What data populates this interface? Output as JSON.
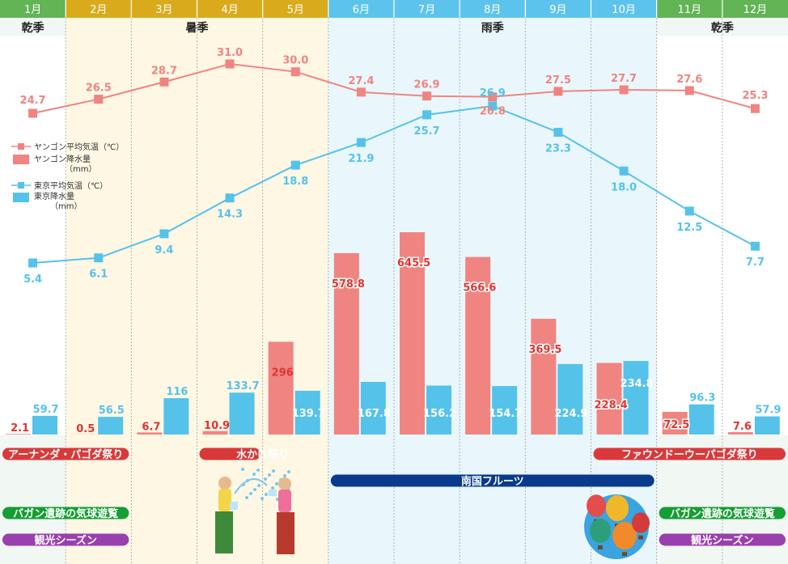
{
  "colors": {
    "dry": "#62b455",
    "hot": "#d9ab1c",
    "rainy": "#5cc4ec",
    "dry_bg": "#f1f7f2",
    "hot_bg": "#fdf7e4",
    "rainy_bg": "#e9f7fc",
    "yangon": "#f08481",
    "tokyo": "#55c2ea",
    "red_label": "#e2332f",
    "event_red": "#d9393a",
    "event_green": "#149e33",
    "event_purple": "#9a3fae",
    "event_navy": "#0a3a8c"
  },
  "seasons": [
    {
      "label": "乾季",
      "type": "dry",
      "start": 0,
      "end": 1
    },
    {
      "label": "暑季",
      "type": "hot",
      "start": 1,
      "end": 5
    },
    {
      "label": "雨季",
      "type": "rainy",
      "start": 5,
      "end": 10
    },
    {
      "label": "乾季",
      "type": "dry",
      "start": 10,
      "end": 12
    }
  ],
  "legend": {
    "yangon_temp": "ヤンゴン平均気温（℃）",
    "yangon_rain": "ヤンゴン降水量",
    "yangon_rain_unit": "（mm）",
    "tokyo_temp": "東京平均気温（℃）",
    "tokyo_rain": "東京降水量",
    "tokyo_rain_unit": "（mm）"
  },
  "chart_data": {
    "type": "bar",
    "categories": [
      "1月",
      "2月",
      "3月",
      "4月",
      "5月",
      "6月",
      "7月",
      "8月",
      "9月",
      "10月",
      "11月",
      "12月"
    ],
    "series": [
      {
        "name": "ヤンゴン平均気温（℃）",
        "kind": "line",
        "values": [
          24.7,
          26.5,
          28.7,
          31.0,
          30.0,
          27.4,
          26.9,
          26.8,
          27.5,
          27.7,
          27.6,
          25.3
        ]
      },
      {
        "name": "東京平均気温（℃）",
        "kind": "line",
        "values": [
          5.4,
          6.1,
          9.4,
          14.3,
          18.8,
          21.9,
          25.7,
          26.9,
          23.3,
          18.0,
          12.5,
          7.7
        ]
      },
      {
        "name": "ヤンゴン降水量（mm）",
        "kind": "bar",
        "values": [
          2.1,
          0.5,
          6.7,
          10.9,
          296,
          578.8,
          645.5,
          566.6,
          369.5,
          228.4,
          72.5,
          7.6
        ]
      },
      {
        "name": "東京降水量（mm）",
        "kind": "bar",
        "values": [
          59.7,
          56.5,
          116,
          133.7,
          139.7,
          167.8,
          156.2,
          154.7,
          224.9,
          234.8,
          96.3,
          57.9
        ]
      }
    ],
    "temp_range": [
      0,
      31
    ],
    "rain_range": [
      0,
      650
    ],
    "grid": "dashed month separators"
  },
  "events": [
    {
      "label": "アーナンダ・パゴダ祭り",
      "color": "event_red",
      "start": 0,
      "end": 2,
      "row": 0
    },
    {
      "label": "水かけ祭り",
      "color": "event_red",
      "start": 3,
      "end": 4,
      "row": 0
    },
    {
      "label": "ファウンドーウーパゴダ祭り",
      "color": "event_red",
      "start": 9,
      "end": 12,
      "row": 0
    },
    {
      "label": "南国フルーツ",
      "color": "event_navy",
      "start": 5,
      "end": 10,
      "row": 1
    },
    {
      "label": "バガン遺跡の気球遊覧",
      "color": "event_green",
      "start": 0,
      "end": 2,
      "row": 2
    },
    {
      "label": "バガン遺跡の気球遊覧",
      "color": "event_green",
      "start": 10,
      "end": 12,
      "row": 2
    },
    {
      "label": "観光シーズン",
      "color": "event_purple",
      "start": 0,
      "end": 2,
      "row": 3
    },
    {
      "label": "観光シーズン",
      "color": "event_purple",
      "start": 10,
      "end": 12,
      "row": 3
    }
  ],
  "illustrations": {
    "water_festival": "water-festival-dancers",
    "balloons": "hot-air-balloons"
  }
}
